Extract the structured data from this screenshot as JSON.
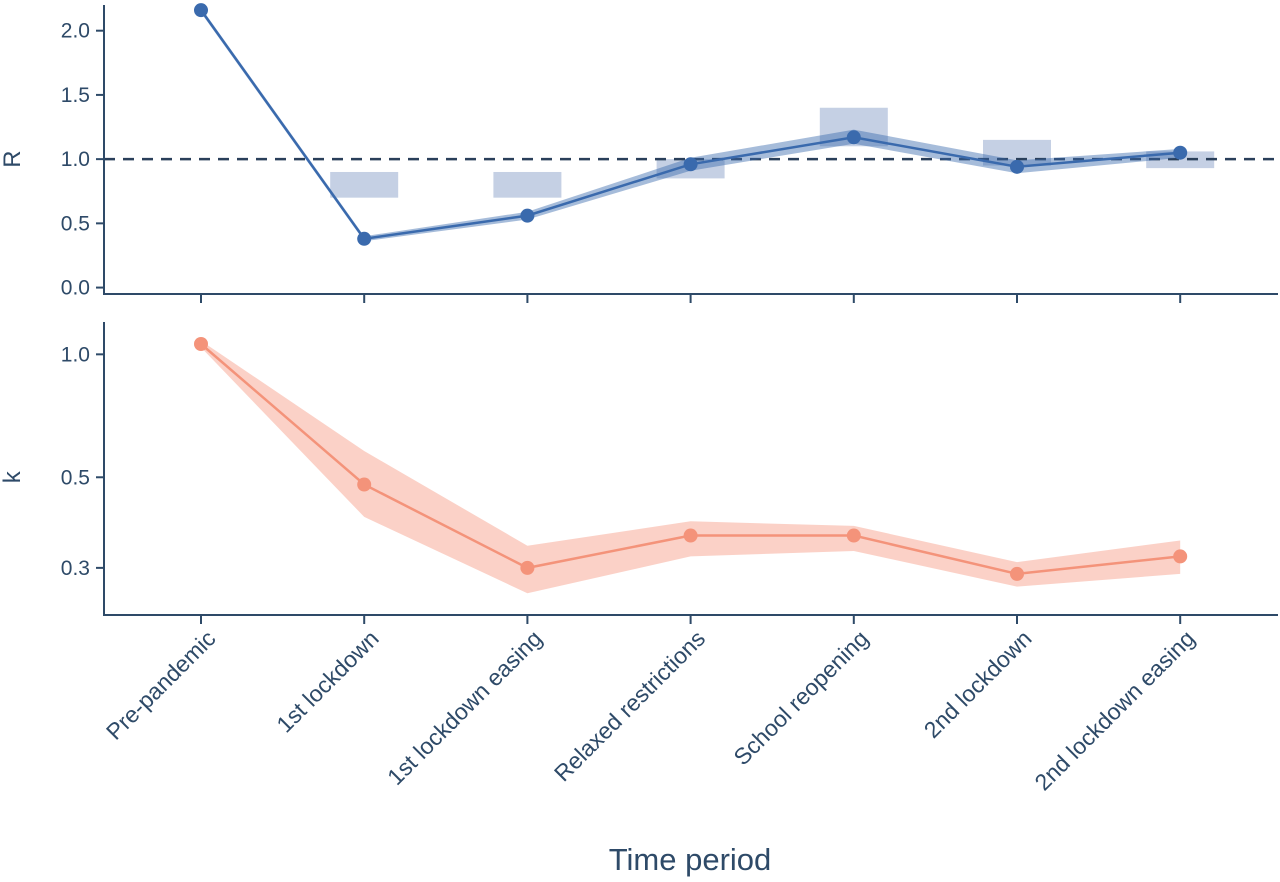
{
  "chart_data": [
    {
      "type": "line",
      "panel": "top",
      "ylabel": "R",
      "xlabel": "",
      "ylim": [
        -0.05,
        2.2
      ],
      "yticks": [
        0.0,
        0.5,
        1.0,
        1.5,
        2.0
      ],
      "ytick_labels": [
        "0.0",
        "0.5",
        "1.0",
        "1.5",
        "2.0"
      ],
      "categories": [
        "Pre-pandemic",
        "1st lockdown",
        "1st lockdown easing",
        "Relaxed restrictions",
        "School reopening",
        "2nd lockdown",
        "2nd lockdown easing"
      ],
      "series": [
        {
          "values": [
            2.16,
            0.38,
            0.56,
            0.96,
            1.17,
            0.94,
            1.05
          ],
          "lower": [
            2.14,
            0.36,
            0.53,
            0.91,
            1.12,
            0.89,
            1.01
          ],
          "upper": [
            2.18,
            0.4,
            0.59,
            1.01,
            1.23,
            0.99,
            1.08
          ]
        }
      ],
      "reference_ranges": [
        null,
        {
          "low": 0.7,
          "high": 0.9
        },
        {
          "low": 0.7,
          "high": 0.9
        },
        {
          "low": 0.85,
          "high": 1.0
        },
        {
          "low": 1.1,
          "high": 1.4
        },
        {
          "low": 0.95,
          "high": 1.15
        },
        {
          "low": 0.93,
          "high": 1.06
        }
      ],
      "reference_line": 1.0,
      "colors": {
        "line": "#3a6aad",
        "band": "#3a6aad",
        "reference": "#c5d0e4",
        "dashed": "#2a3f5a"
      }
    },
    {
      "type": "line",
      "panel": "bottom",
      "ylabel": "k",
      "xlabel": "Time period",
      "scale": "log",
      "ylim": [
        0.23,
        1.2
      ],
      "yticks": [
        0.3,
        0.5,
        1.0
      ],
      "ytick_labels": [
        "0.3",
        "0.5",
        "1.0"
      ],
      "categories": [
        "Pre-pandemic",
        "1st lockdown",
        "1st lockdown easing",
        "Relaxed restrictions",
        "School reopening",
        "2nd lockdown",
        "2nd lockdown easing"
      ],
      "series": [
        {
          "values": [
            1.06,
            0.48,
            0.3,
            0.36,
            0.36,
            0.29,
            0.32
          ],
          "lower": [
            1.04,
            0.4,
            0.26,
            0.32,
            0.33,
            0.27,
            0.29
          ],
          "upper": [
            1.08,
            0.58,
            0.34,
            0.39,
            0.38,
            0.31,
            0.35
          ]
        }
      ],
      "colors": {
        "line": "#f4937a",
        "band": "#f9c1b4"
      }
    }
  ]
}
